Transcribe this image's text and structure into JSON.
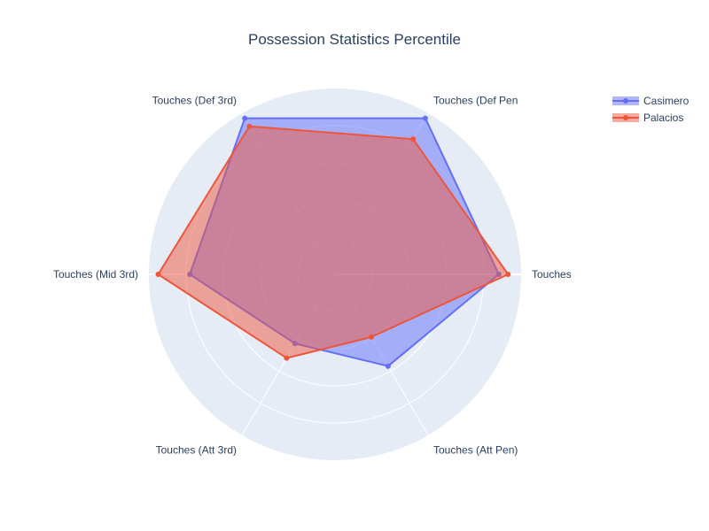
{
  "chart_data": {
    "type": "radar",
    "title": "Possession Statistics Percentile",
    "categories": [
      "Touches",
      "Touches (Def Pen",
      "Touches (Def 3rd)",
      "Touches (Mid 3rd)",
      "Touches (Att 3rd)",
      "Touches (Att Pen)"
    ],
    "radial_range": [
      0,
      100
    ],
    "grid": true,
    "legend_position": "top-right",
    "series": [
      {
        "name": "Casimero",
        "color": "#636efa",
        "values": [
          88,
          97,
          97,
          78,
          43,
          57
        ]
      },
      {
        "name": "Palacios",
        "color": "#ef553b",
        "values": [
          93,
          84,
          92,
          95,
          52,
          39
        ]
      }
    ]
  }
}
